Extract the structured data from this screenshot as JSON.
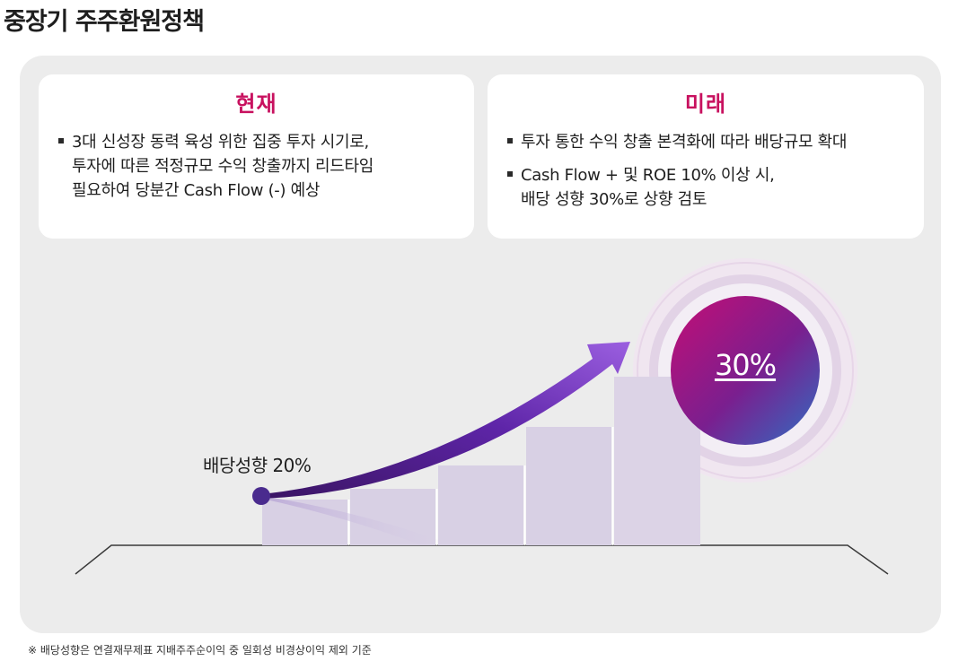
{
  "page": {
    "title": "중장기 주주환원정책"
  },
  "current": {
    "title": "현재",
    "bullets": [
      "3대 신성장 동력 육성 위한 집중 투자 시기로,\n투자에 따른 적정규모 수익 창출까지 리드타임\n필요하여 당분간 Cash Flow (-) 예상"
    ]
  },
  "future": {
    "title": "미래",
    "bullets": [
      "투자 통한 수익 창출 본격화에 따라 배당규모 확대",
      "Cash Flow + 및 ROE 10% 이상 시,\n배당 성향 30%로 상향 검토"
    ]
  },
  "graphic": {
    "start_label": "배당성향 20%",
    "target_label": "30%",
    "start_payout_percent": 20,
    "target_payout_percent": 30,
    "colors": {
      "accent_magenta": "#c8115f",
      "arrow_purple": "#6a2fb5",
      "bars_lavender": "#d8d0e4",
      "circle_gradient_start": "#c40e75",
      "circle_gradient_end": "#2f6ec2"
    }
  },
  "footnote": "※ 배당성향은 연결재무제표 지배주주순이익 중 일회성 비경상이익 제외 기준"
}
